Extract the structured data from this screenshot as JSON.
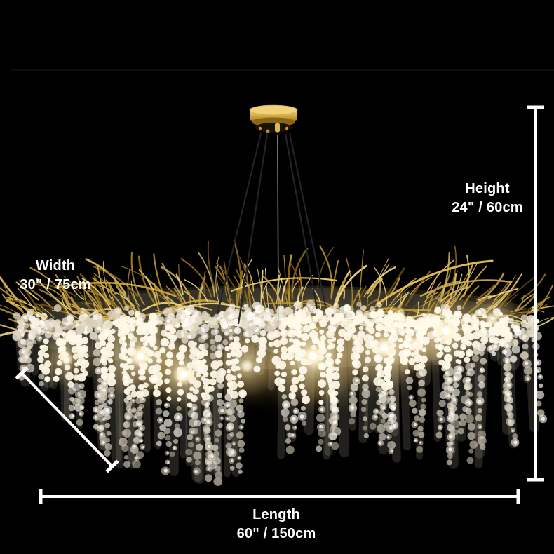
{
  "image": {
    "description": "Gold branch crystal chandelier product photo on black background with dimension annotations",
    "background": "#000000"
  },
  "dimensions": {
    "height": {
      "label": "Height",
      "value": "24\" / 60cm"
    },
    "width": {
      "label": "Width",
      "value": "30\" / 75cm"
    },
    "length": {
      "label": "Length",
      "value": "60\" / 150cm"
    }
  },
  "colors": {
    "background": "#000000",
    "annotation": "#ffffff",
    "gold_primary": "#d2ab45",
    "gold_deep": "#8a6518",
    "crystal": "#f3ecdd",
    "glow": "#ffd27a"
  }
}
